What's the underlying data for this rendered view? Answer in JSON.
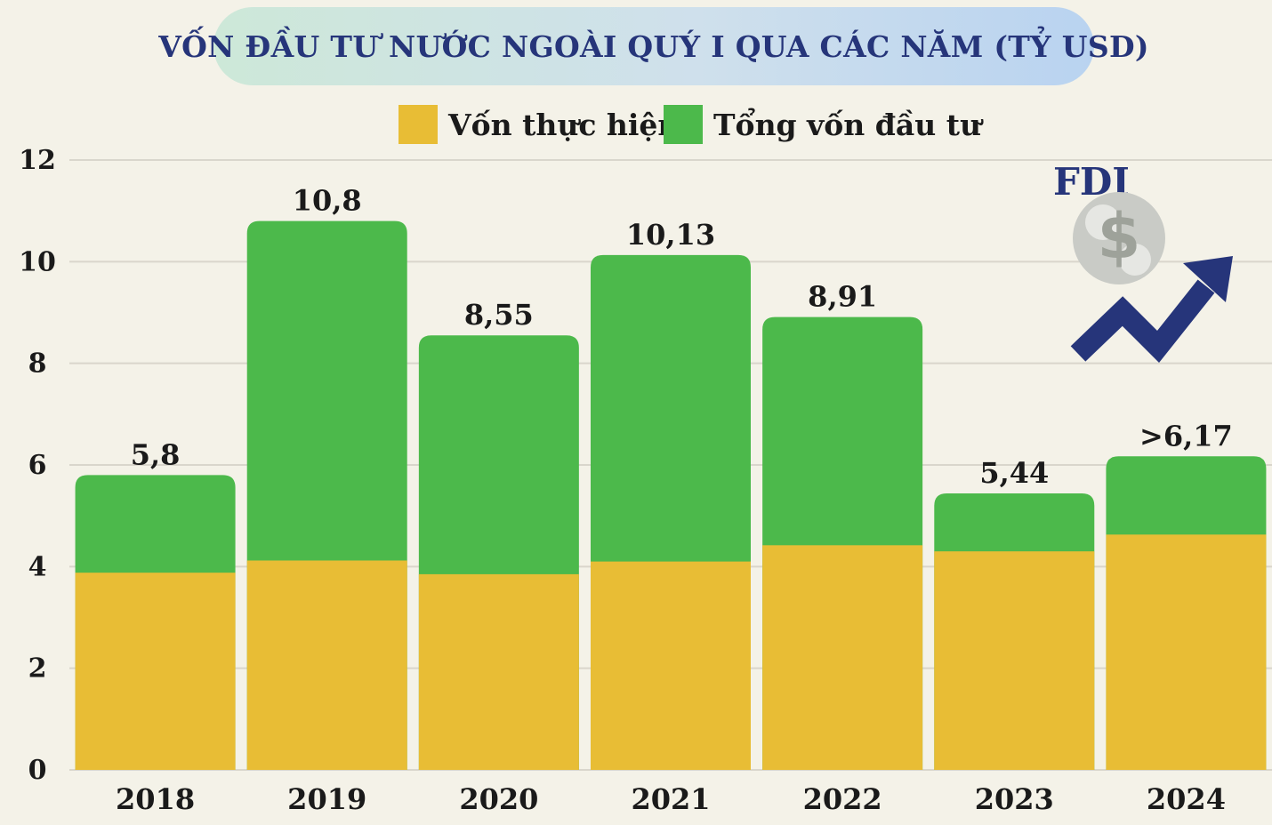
{
  "title": "VỐN ĐẦU TƯ NƯỚC NGOÀI QUÝ I QUA CÁC NĂM (TỶ USD)",
  "badge": "FDI",
  "icon": "fdi-money-arrow-icon",
  "colors": {
    "realized": "#e8bd35",
    "total": "#4cb94b",
    "title": "#26357a",
    "background": "#f4f2e8",
    "grid": "#d9d6cc"
  },
  "chart_data": {
    "type": "bar",
    "title": "VỐN ĐẦU TƯ NƯỚC NGOÀI QUÝ I QUA CÁC NĂM (TỶ USD)",
    "legend": [
      "Vốn thực hiện",
      "Tổng vốn đầu tư"
    ],
    "legend_position": "top-center",
    "categories": [
      "2018",
      "2019",
      "2020",
      "2021",
      "2022",
      "2023",
      "2024"
    ],
    "series": [
      {
        "name": "Vốn thực hiện",
        "values": [
          3.88,
          4.12,
          3.85,
          4.1,
          4.42,
          4.3,
          4.63
        ]
      },
      {
        "name": "Tổng vốn đầu tư",
        "values": [
          5.8,
          10.8,
          8.55,
          10.13,
          8.91,
          5.44,
          6.17
        ]
      }
    ],
    "data_labels": [
      "5,8",
      "10,8",
      "8,55",
      "10,13",
      "8,91",
      "5,44",
      ">6,17"
    ],
    "y_ticks": [
      "0",
      "2",
      "4",
      "6",
      "8",
      "10",
      "12"
    ],
    "ylim": [
      0,
      12
    ],
    "grid": true
  }
}
